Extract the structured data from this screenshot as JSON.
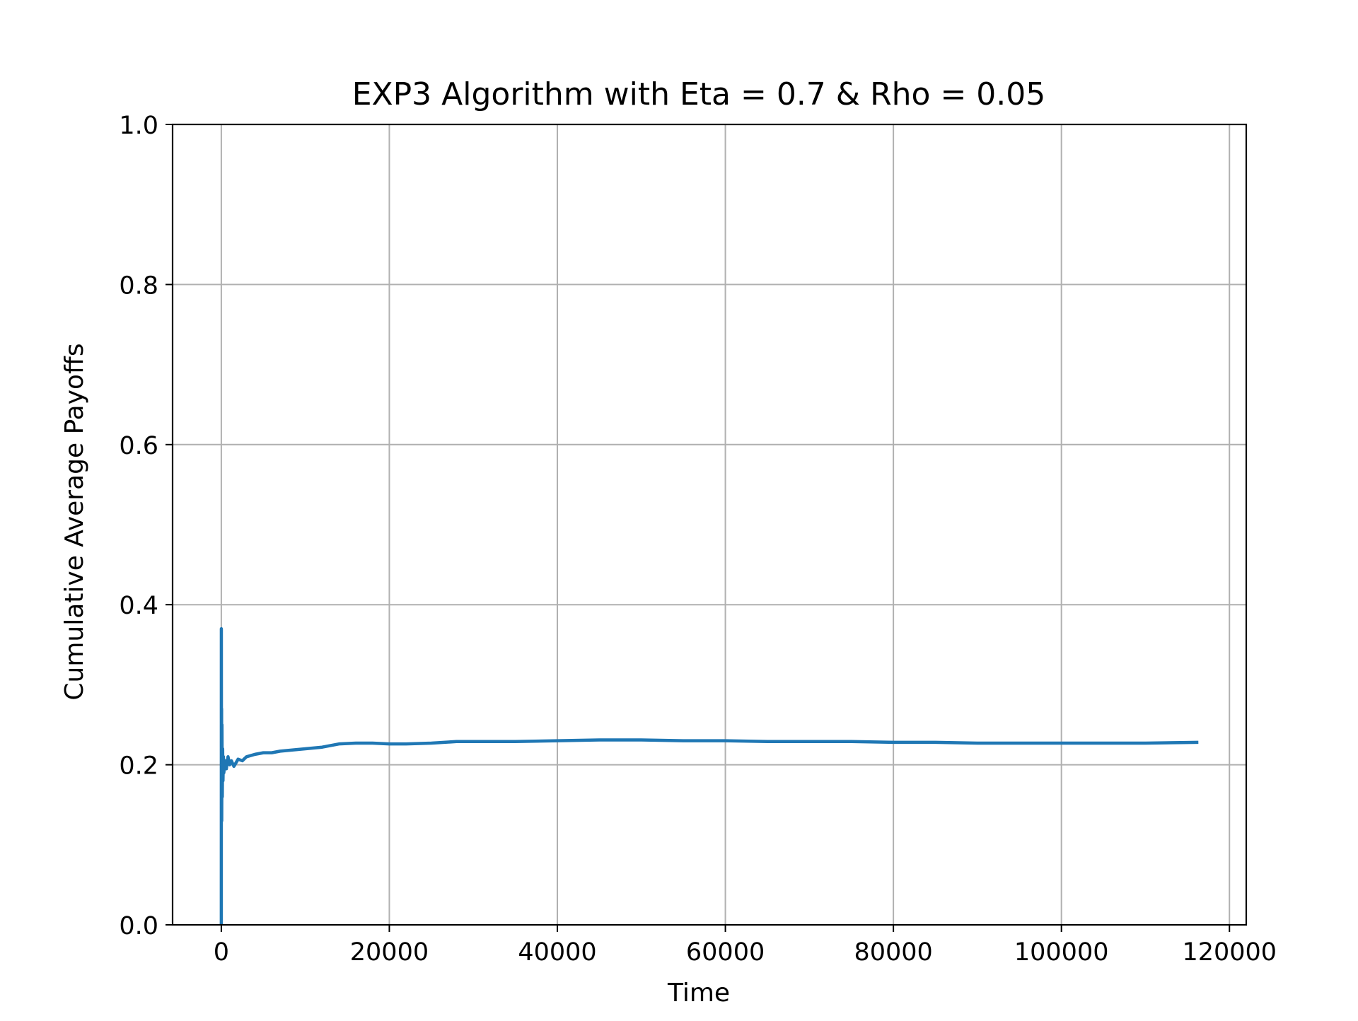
{
  "chart_data": {
    "type": "line",
    "title": "EXP3 Algorithm with Eta = 0.7 & Rho = 0.05",
    "xlabel": "Time",
    "ylabel": "Cumulative Average Payoffs",
    "xlim": [
      -5800,
      122000
    ],
    "ylim": [
      0.0,
      1.0
    ],
    "x_ticks": [
      0,
      20000,
      40000,
      60000,
      80000,
      100000,
      120000
    ],
    "x_tick_labels": [
      "0",
      "20000",
      "40000",
      "60000",
      "80000",
      "100000",
      "120000"
    ],
    "y_ticks": [
      0.0,
      0.2,
      0.4,
      0.6,
      0.8,
      1.0
    ],
    "y_tick_labels": [
      "0.0",
      "0.2",
      "0.4",
      "0.6",
      "0.8",
      "1.0"
    ],
    "grid": true,
    "colors": {
      "series": "#1f77b4",
      "grid": "#b0b0b0",
      "axes": "#000000"
    },
    "series": [
      {
        "x": [
          0,
          5,
          10,
          20,
          35,
          50,
          80,
          120,
          160,
          200,
          250,
          300,
          400,
          500,
          600,
          800,
          1000,
          1200,
          1500,
          2000,
          2500,
          3000,
          4000,
          5000,
          6000,
          7000,
          8000,
          10000,
          12000,
          14000,
          16000,
          18000,
          20000,
          22000,
          25000,
          28000,
          30000,
          35000,
          40000,
          45000,
          50000,
          55000,
          60000,
          65000,
          70000,
          75000,
          80000,
          85000,
          90000,
          95000,
          100000,
          105000,
          110000,
          116300
        ],
        "y": [
          0.0,
          0.37,
          0.3,
          0.15,
          0.27,
          0.13,
          0.25,
          0.16,
          0.22,
          0.18,
          0.21,
          0.19,
          0.2,
          0.205,
          0.195,
          0.21,
          0.2,
          0.205,
          0.198,
          0.207,
          0.205,
          0.21,
          0.213,
          0.215,
          0.215,
          0.217,
          0.218,
          0.22,
          0.222,
          0.226,
          0.227,
          0.227,
          0.226,
          0.226,
          0.227,
          0.229,
          0.229,
          0.229,
          0.23,
          0.231,
          0.231,
          0.23,
          0.23,
          0.229,
          0.229,
          0.229,
          0.228,
          0.228,
          0.227,
          0.227,
          0.227,
          0.227,
          0.227,
          0.228
        ]
      }
    ]
  }
}
